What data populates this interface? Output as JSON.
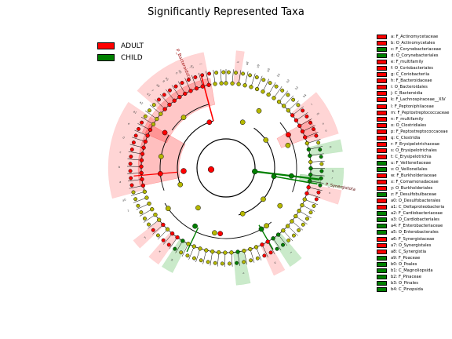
{
  "title": "Significantly Represented Taxa",
  "legend": [
    {
      "label": "ADULT",
      "color": "#ff0000"
    },
    {
      "label": "CHILD",
      "color": "#008000"
    }
  ],
  "colors": {
    "adult": "#ff0000",
    "child": "#008000",
    "adult_shade": "#ffb3b3",
    "child_shade": "#9fd89f",
    "node_default": "#b5b800"
  },
  "taxa_key": [
    {
      "code": "a",
      "name": "F_Actinomycetaceae",
      "group": "ADULT"
    },
    {
      "code": "b",
      "name": "O_Actinomycetales",
      "group": "ADULT"
    },
    {
      "code": "c",
      "name": "F_Corynebacteriaceae",
      "group": "CHILD"
    },
    {
      "code": "d",
      "name": "O_Corynebacteriales",
      "group": "CHILD"
    },
    {
      "code": "e",
      "name": "F_multifamily",
      "group": "ADULT"
    },
    {
      "code": "f",
      "name": "O_Coriobacteriales",
      "group": "ADULT"
    },
    {
      "code": "g",
      "name": "C_Coriobacteriia",
      "group": "ADULT"
    },
    {
      "code": "h",
      "name": "F_Bacteroidaceae",
      "group": "ADULT"
    },
    {
      "code": "i",
      "name": "O_Bacteroidales",
      "group": "ADULT"
    },
    {
      "code": "j",
      "name": "C_Bacteroidia",
      "group": "ADULT"
    },
    {
      "code": "k",
      "name": "F_Lachnospiraceae__XIV",
      "group": "ADULT"
    },
    {
      "code": "l",
      "name": "F_Peptoniphilaceae",
      "group": "ADULT"
    },
    {
      "code": "m",
      "name": "F_Peptostreptococcaceae",
      "group": "ADULT"
    },
    {
      "code": "n",
      "name": "F_multifamily",
      "group": "ADULT"
    },
    {
      "code": "o",
      "name": "O_Clostridiales",
      "group": "ADULT"
    },
    {
      "code": "p",
      "name": "F_Peptostreptococcaceae",
      "group": "ADULT"
    },
    {
      "code": "q",
      "name": "C_Clostridia",
      "group": "ADULT"
    },
    {
      "code": "r",
      "name": "F_Erysipelotrichaceae",
      "group": "ADULT"
    },
    {
      "code": "s",
      "name": "O_Erysipelotrichales",
      "group": "ADULT"
    },
    {
      "code": "t",
      "name": "C_Erysipelotrichia",
      "group": "ADULT"
    },
    {
      "code": "u",
      "name": "F_Veillonellaceae",
      "group": "CHILD"
    },
    {
      "code": "v",
      "name": "O_Veillonellales",
      "group": "CHILD"
    },
    {
      "code": "w",
      "name": "F_Burkholderiaceae",
      "group": "ADULT"
    },
    {
      "code": "x",
      "name": "F_Comamonadaceae",
      "group": "ADULT"
    },
    {
      "code": "y",
      "name": "O_Burkholderiales",
      "group": "ADULT"
    },
    {
      "code": "z",
      "name": "F_Desulfobulbaceae",
      "group": "CHILD"
    },
    {
      "code": "a0",
      "name": "O_Desulfobacterales",
      "group": "ADULT"
    },
    {
      "code": "a1",
      "name": "C_Deltaproteobacteria",
      "group": "ADULT"
    },
    {
      "code": "a2",
      "name": "F_Cardiobacteriaceae",
      "group": "CHILD"
    },
    {
      "code": "a3",
      "name": "O_Cardiobacteriales",
      "group": "CHILD"
    },
    {
      "code": "a4",
      "name": "F_Enterobacteriaceae",
      "group": "CHILD"
    },
    {
      "code": "a5",
      "name": "O_Enterobacterales",
      "group": "CHILD"
    },
    {
      "code": "a6",
      "name": "F_Synergistaceae",
      "group": "ADULT"
    },
    {
      "code": "a7",
      "name": "O_Synergistales",
      "group": "ADULT"
    },
    {
      "code": "a8",
      "name": "C_Synergistia",
      "group": "ADULT"
    },
    {
      "code": "a9",
      "name": "F_Poaceae",
      "group": "CHILD"
    },
    {
      "code": "b0",
      "name": "O_Poales",
      "group": "CHILD"
    },
    {
      "code": "b1",
      "name": "C_Magnoliopsida",
      "group": "CHILD"
    },
    {
      "code": "b2",
      "name": "F_Pinaceae",
      "group": "CHILD"
    },
    {
      "code": "b3",
      "name": "O_Pinales",
      "group": "CHILD"
    },
    {
      "code": "b4",
      "name": "C_Pinopsida",
      "group": "CHILD"
    }
  ],
  "clade_labels": [
    {
      "text": "P_Bacteroidota",
      "group": "ADULT"
    },
    {
      "text": "P_Synergistota",
      "group": "ADULT"
    }
  ],
  "sector_letters": [
    "a",
    "b",
    "c",
    "d",
    "e",
    "f",
    "g",
    "h",
    "i",
    "j",
    "k",
    "l",
    "m",
    "n",
    "o",
    "p",
    "q",
    "r",
    "s",
    "t",
    "u",
    "v",
    "w",
    "x",
    "y",
    "z",
    "a0",
    "a1",
    "a2",
    "a3",
    "a4",
    "a5",
    "a6",
    "a7",
    "a8",
    "a9",
    "b0",
    "b1",
    "b2",
    "b3",
    "b4"
  ]
}
